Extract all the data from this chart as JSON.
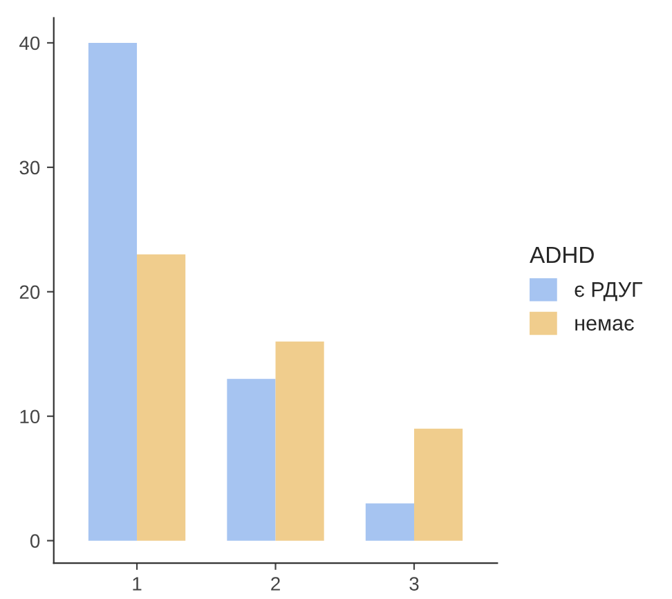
{
  "chart_data": {
    "type": "bar",
    "categories": [
      "1",
      "2",
      "3"
    ],
    "legend_title": "ADHD",
    "legend": "right",
    "grid": false,
    "series": [
      {
        "name": "є РДУГ",
        "color": "#a6c4f1",
        "values": [
          40,
          13,
          3
        ]
      },
      {
        "name": "немає",
        "color": "#f0cd8d",
        "values": [
          23,
          16,
          9
        ]
      }
    ],
    "ylim": [
      -1.8,
      42
    ],
    "yticks": [
      0,
      10,
      20,
      30,
      40
    ]
  }
}
